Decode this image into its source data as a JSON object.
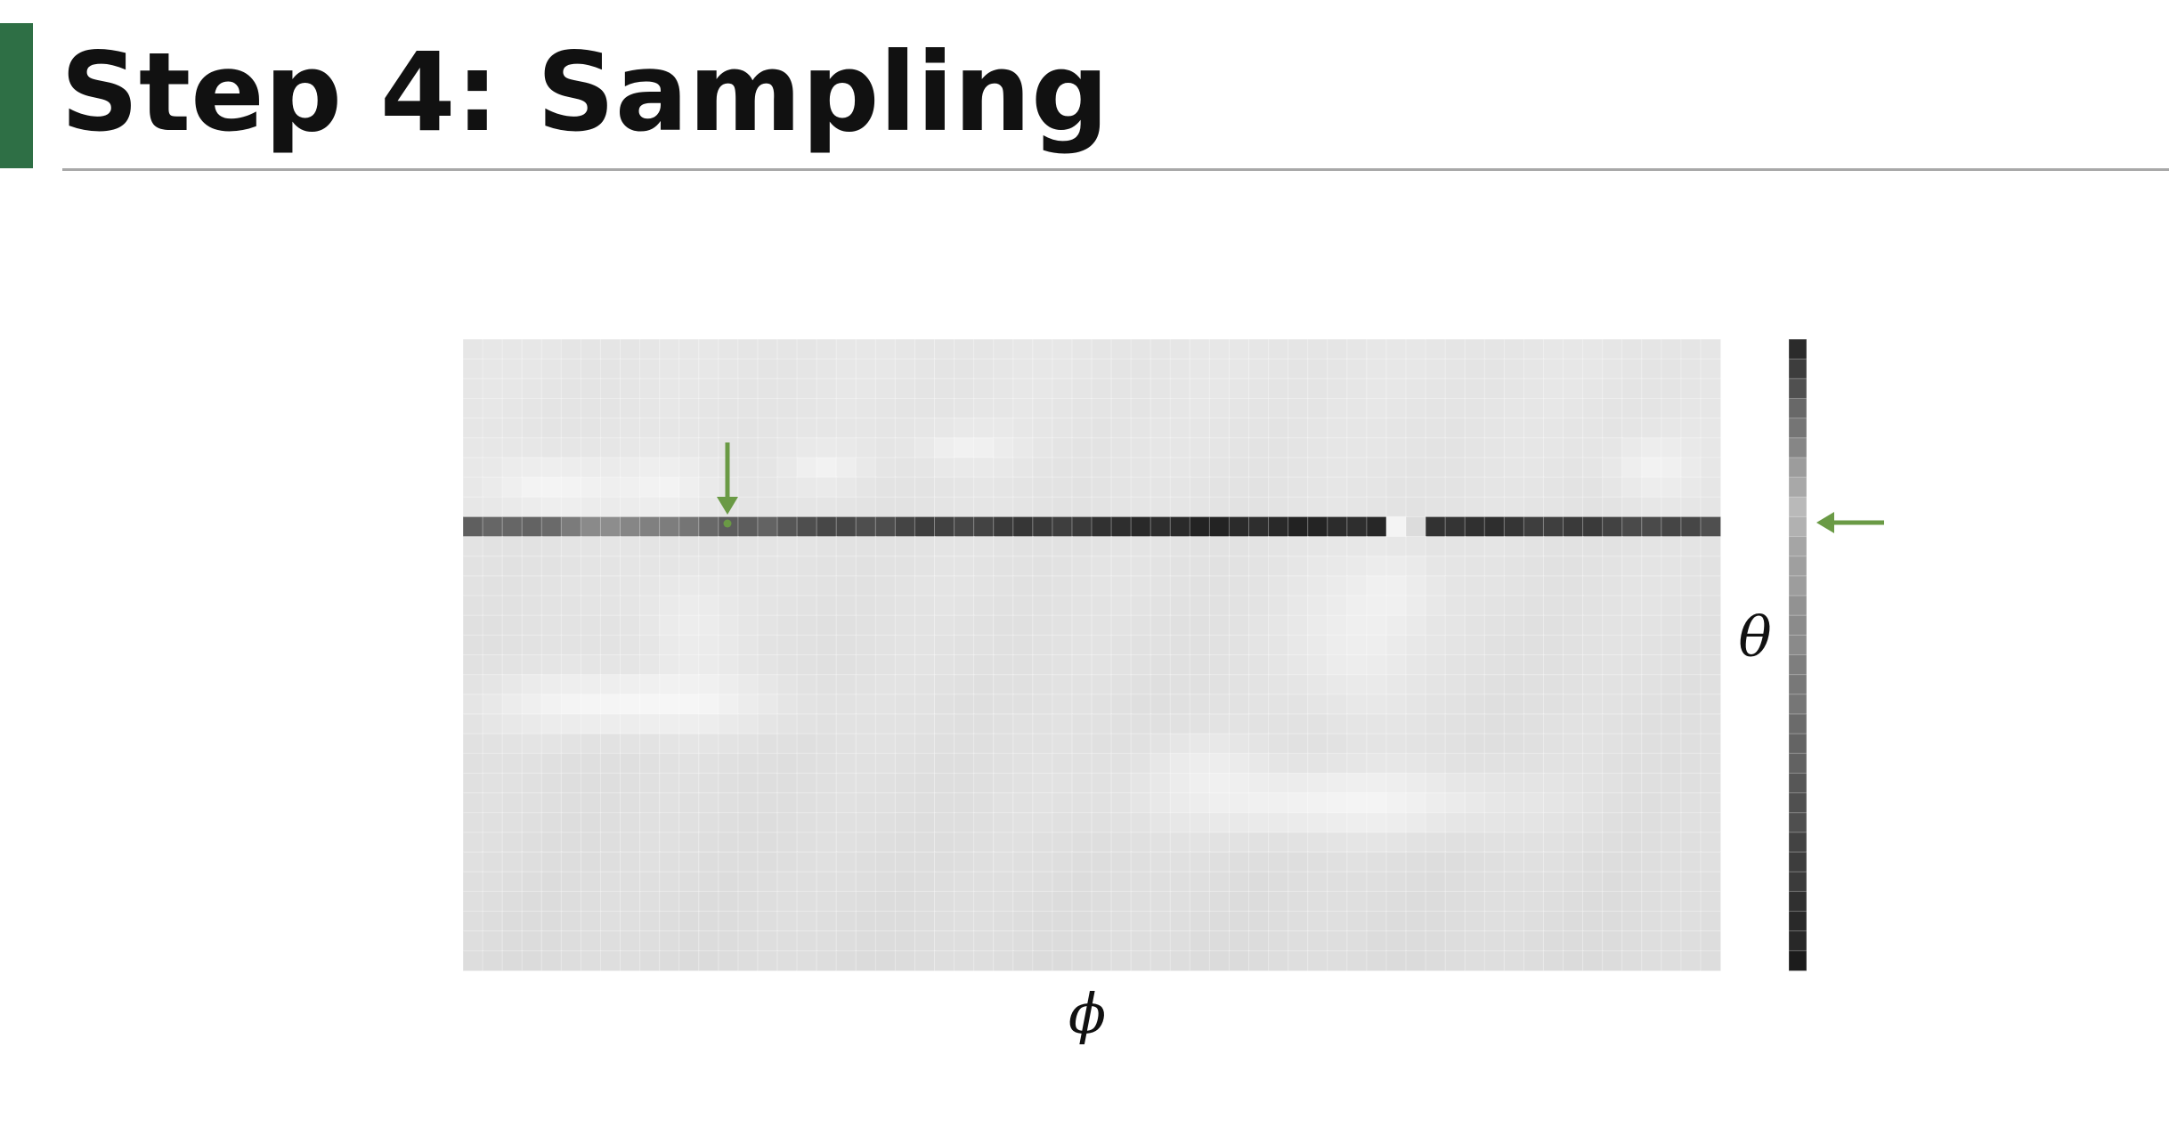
{
  "slide": {
    "title": "Step 4: Sampling",
    "accent_color": "#2e6f45"
  },
  "diagram": {
    "x_axis_symbol": "ϕ",
    "y_axis_symbol": "θ",
    "grid": {
      "columns": 64,
      "rows": 32,
      "selected_row": 9,
      "selected_column": 13
    },
    "highlight_color": "#6a9a45"
  }
}
